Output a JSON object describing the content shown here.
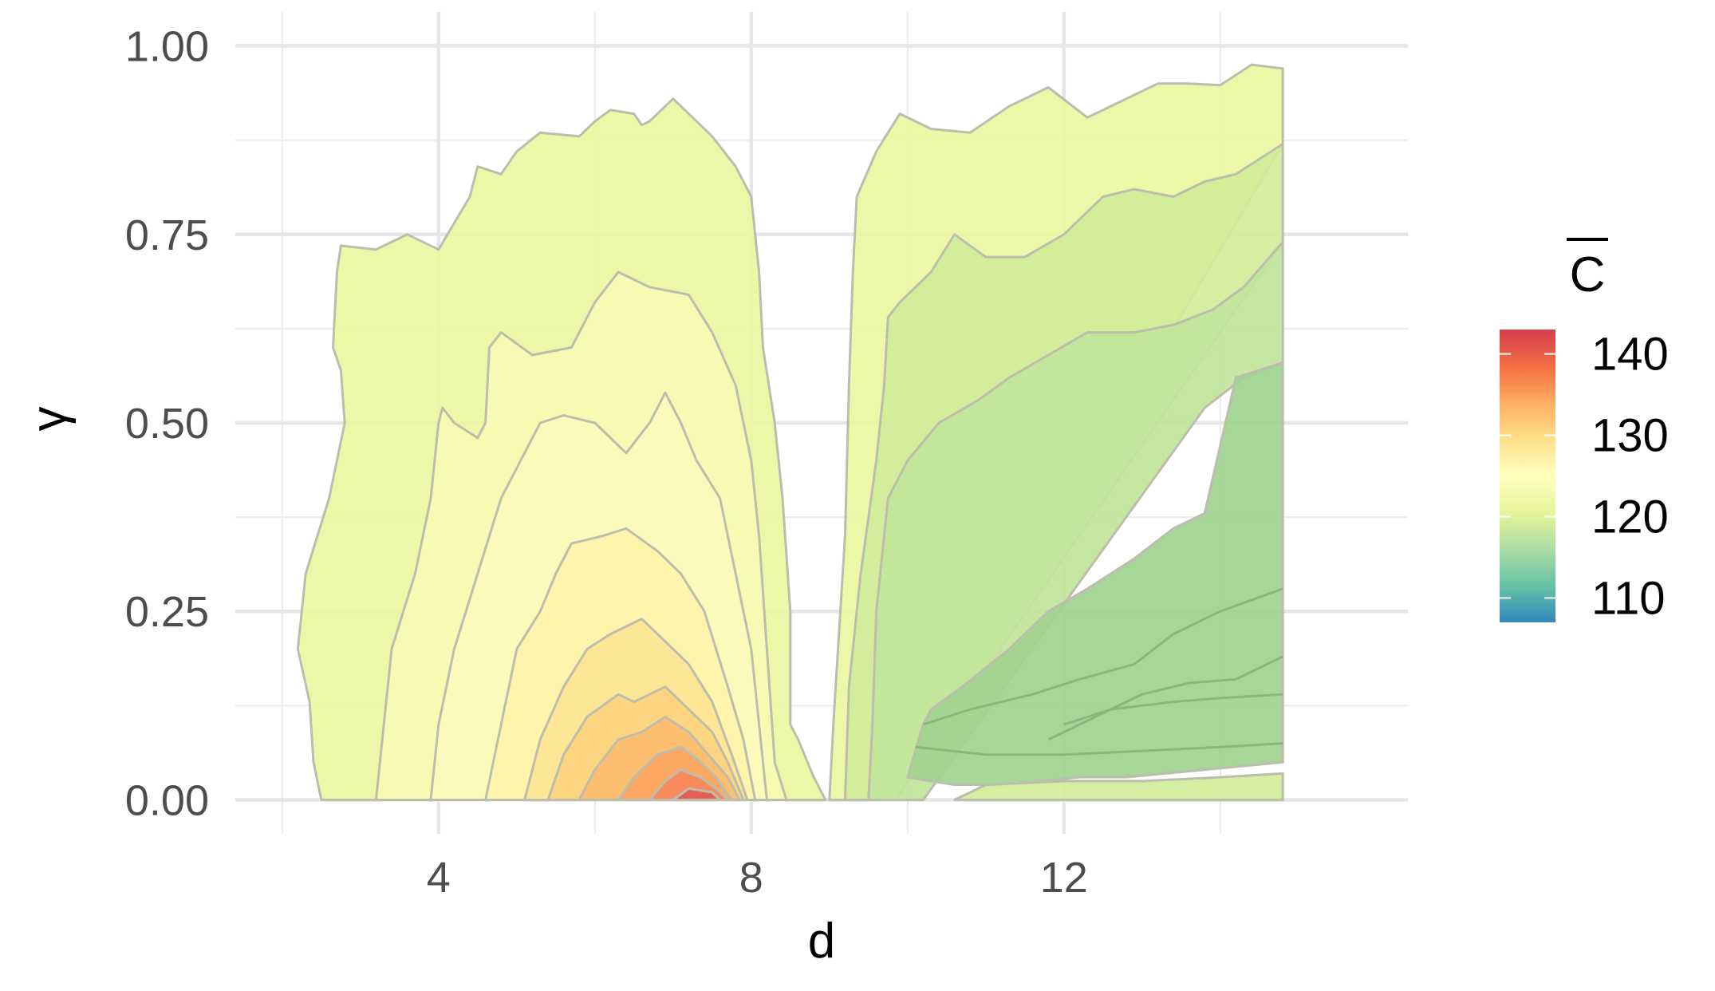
{
  "chart_data": {
    "type": "contour",
    "xlabel": "d",
    "ylabel": "γ",
    "xlim": [
      1.4,
      16.4
    ],
    "ylim": [
      -0.045,
      1.045
    ],
    "x_ticks": [
      4,
      8,
      12
    ],
    "x_tick_labels": [
      "4",
      "8",
      "12"
    ],
    "y_ticks": [
      0,
      0.25,
      0.5,
      0.75,
      1.0
    ],
    "y_tick_labels": [
      "0.00",
      "0.25",
      "0.50",
      "0.75",
      "1.00"
    ],
    "grid": true,
    "legend": {
      "title": "C",
      "title_has_overline": true,
      "placement": "right",
      "min": 107,
      "max": 143,
      "ticks": [
        110,
        120,
        130,
        140
      ],
      "tick_labels": [
        "110",
        "120",
        "130",
        "140"
      ],
      "palette": [
        "#3288bd",
        "#66c2a5",
        "#abdda4",
        "#e6f598",
        "#ffffbf",
        "#fee08b",
        "#fdae61",
        "#f46d43",
        "#d53e4f"
      ]
    },
    "regions": [
      {
        "level": 120,
        "color": "#eaf7a1",
        "points": [
          [
            2.5,
            0
          ],
          [
            2.4,
            0.05
          ],
          [
            2.35,
            0.13
          ],
          [
            2.2,
            0.2
          ],
          [
            2.3,
            0.3
          ],
          [
            2.6,
            0.4
          ],
          [
            2.8,
            0.5
          ],
          [
            2.75,
            0.57
          ],
          [
            2.65,
            0.6
          ],
          [
            2.7,
            0.7
          ],
          [
            2.75,
            0.735
          ],
          [
            3.2,
            0.73
          ],
          [
            3.6,
            0.75
          ],
          [
            4.0,
            0.73
          ],
          [
            4.4,
            0.8
          ],
          [
            4.5,
            0.84
          ],
          [
            4.8,
            0.83
          ],
          [
            5.0,
            0.86
          ],
          [
            5.3,
            0.885
          ],
          [
            5.8,
            0.88
          ],
          [
            6.0,
            0.9
          ],
          [
            6.2,
            0.915
          ],
          [
            6.5,
            0.91
          ],
          [
            6.6,
            0.895
          ],
          [
            6.7,
            0.9
          ],
          [
            7.0,
            0.93
          ],
          [
            7.3,
            0.9
          ],
          [
            7.5,
            0.88
          ],
          [
            7.8,
            0.84
          ],
          [
            8.0,
            0.8
          ],
          [
            8.05,
            0.75
          ],
          [
            8.1,
            0.7
          ],
          [
            8.15,
            0.6
          ],
          [
            8.3,
            0.5
          ],
          [
            8.4,
            0.4
          ],
          [
            8.5,
            0.25
          ],
          [
            8.5,
            0.1
          ],
          [
            8.6,
            0.08
          ],
          [
            8.8,
            0.03
          ],
          [
            8.95,
            0
          ]
        ]
      },
      {
        "level": 120,
        "color": "#eaf7a1",
        "points": [
          [
            9.0,
            0
          ],
          [
            9.05,
            0.1
          ],
          [
            9.2,
            0.35
          ],
          [
            9.25,
            0.55
          ],
          [
            9.3,
            0.7
          ],
          [
            9.35,
            0.8
          ],
          [
            9.6,
            0.86
          ],
          [
            9.9,
            0.91
          ],
          [
            10.3,
            0.89
          ],
          [
            10.8,
            0.885
          ],
          [
            11.3,
            0.92
          ],
          [
            11.8,
            0.945
          ],
          [
            12.3,
            0.905
          ],
          [
            12.8,
            0.93
          ],
          [
            13.2,
            0.95
          ],
          [
            13.6,
            0.95
          ],
          [
            14.0,
            0.948
          ],
          [
            14.4,
            0.975
          ],
          [
            14.8,
            0.97
          ],
          [
            14.8,
            0.87
          ],
          [
            10.0,
            0.03
          ],
          [
            9.6,
            0
          ]
        ]
      },
      {
        "level": 122,
        "color": "#f6fab4",
        "points": [
          [
            3.2,
            0
          ],
          [
            3.3,
            0.1
          ],
          [
            3.4,
            0.2
          ],
          [
            3.7,
            0.3
          ],
          [
            3.9,
            0.4
          ],
          [
            4.0,
            0.5
          ],
          [
            4.05,
            0.52
          ],
          [
            4.2,
            0.5
          ],
          [
            4.5,
            0.48
          ],
          [
            4.6,
            0.5
          ],
          [
            4.65,
            0.6
          ],
          [
            4.8,
            0.62
          ],
          [
            5.2,
            0.59
          ],
          [
            5.7,
            0.6
          ],
          [
            6.0,
            0.66
          ],
          [
            6.3,
            0.7
          ],
          [
            6.7,
            0.68
          ],
          [
            7.2,
            0.67
          ],
          [
            7.5,
            0.62
          ],
          [
            7.8,
            0.55
          ],
          [
            8.0,
            0.45
          ],
          [
            8.1,
            0.35
          ],
          [
            8.2,
            0.2
          ],
          [
            8.3,
            0.05
          ],
          [
            8.45,
            0
          ]
        ]
      },
      {
        "level": 124,
        "color": "#fbfabc",
        "points": [
          [
            3.9,
            0
          ],
          [
            4.0,
            0.1
          ],
          [
            4.2,
            0.2
          ],
          [
            4.5,
            0.3
          ],
          [
            4.8,
            0.4
          ],
          [
            5.0,
            0.44
          ],
          [
            5.3,
            0.5
          ],
          [
            5.6,
            0.51
          ],
          [
            6.0,
            0.5
          ],
          [
            6.4,
            0.46
          ],
          [
            6.7,
            0.5
          ],
          [
            6.9,
            0.54
          ],
          [
            7.1,
            0.5
          ],
          [
            7.3,
            0.45
          ],
          [
            7.6,
            0.4
          ],
          [
            7.8,
            0.3
          ],
          [
            8.0,
            0.2
          ],
          [
            8.1,
            0.1
          ],
          [
            8.2,
            0
          ]
        ]
      },
      {
        "level": 126,
        "color": "#fef3a9",
        "points": [
          [
            4.6,
            0
          ],
          [
            4.8,
            0.1
          ],
          [
            5.0,
            0.2
          ],
          [
            5.3,
            0.25
          ],
          [
            5.5,
            0.3
          ],
          [
            5.7,
            0.34
          ],
          [
            6.1,
            0.35
          ],
          [
            6.4,
            0.36
          ],
          [
            6.8,
            0.33
          ],
          [
            7.1,
            0.3
          ],
          [
            7.4,
            0.25
          ],
          [
            7.7,
            0.15
          ],
          [
            7.9,
            0.08
          ],
          [
            8.05,
            0
          ]
        ]
      },
      {
        "level": 128,
        "color": "#fde594",
        "points": [
          [
            5.1,
            0
          ],
          [
            5.3,
            0.08
          ],
          [
            5.6,
            0.15
          ],
          [
            5.9,
            0.2
          ],
          [
            6.2,
            0.22
          ],
          [
            6.6,
            0.24
          ],
          [
            6.9,
            0.21
          ],
          [
            7.2,
            0.18
          ],
          [
            7.5,
            0.13
          ],
          [
            7.75,
            0.06
          ],
          [
            7.95,
            0
          ]
        ]
      },
      {
        "level": 130,
        "color": "#fdd27e",
        "points": [
          [
            5.4,
            0
          ],
          [
            5.6,
            0.06
          ],
          [
            5.9,
            0.11
          ],
          [
            6.3,
            0.14
          ],
          [
            6.5,
            0.13
          ],
          [
            6.9,
            0.15
          ],
          [
            7.2,
            0.12
          ],
          [
            7.5,
            0.09
          ],
          [
            7.7,
            0.05
          ],
          [
            7.9,
            0
          ]
        ]
      },
      {
        "level": 132,
        "color": "#fdbd6e",
        "points": [
          [
            5.8,
            0
          ],
          [
            6.0,
            0.04
          ],
          [
            6.3,
            0.08
          ],
          [
            6.6,
            0.09
          ],
          [
            6.9,
            0.11
          ],
          [
            7.2,
            0.09
          ],
          [
            7.45,
            0.06
          ],
          [
            7.7,
            0.03
          ],
          [
            7.85,
            0
          ]
        ]
      },
      {
        "level": 134,
        "color": "#fca561",
        "points": [
          [
            6.3,
            0
          ],
          [
            6.5,
            0.03
          ],
          [
            6.8,
            0.06
          ],
          [
            7.1,
            0.07
          ],
          [
            7.3,
            0.055
          ],
          [
            7.55,
            0.03
          ],
          [
            7.75,
            0
          ]
        ]
      },
      {
        "level": 136,
        "color": "#f9885a",
        "points": [
          [
            6.7,
            0
          ],
          [
            6.9,
            0.025
          ],
          [
            7.1,
            0.04
          ],
          [
            7.35,
            0.03
          ],
          [
            7.55,
            0.015
          ],
          [
            7.7,
            0
          ]
        ]
      },
      {
        "level": 140,
        "color": "#e15b54",
        "points": [
          [
            7.0,
            0
          ],
          [
            7.2,
            0.015
          ],
          [
            7.5,
            0.01
          ],
          [
            7.6,
            0
          ]
        ]
      },
      {
        "level": 118,
        "color": "#d0ed9a",
        "points": [
          [
            9.2,
            0
          ],
          [
            9.25,
            0.15
          ],
          [
            9.4,
            0.3
          ],
          [
            9.6,
            0.45
          ],
          [
            9.7,
            0.55
          ],
          [
            9.75,
            0.64
          ],
          [
            9.9,
            0.66
          ],
          [
            10.3,
            0.7
          ],
          [
            10.6,
            0.75
          ],
          [
            11.0,
            0.72
          ],
          [
            11.5,
            0.72
          ],
          [
            12.0,
            0.75
          ],
          [
            12.5,
            0.8
          ],
          [
            12.9,
            0.81
          ],
          [
            13.4,
            0.8
          ],
          [
            13.8,
            0.82
          ],
          [
            14.2,
            0.83
          ],
          [
            14.8,
            0.87
          ],
          [
            14.8,
            0.74
          ],
          [
            9.85,
            0
          ]
        ]
      },
      {
        "level": 116,
        "color": "#c0e59a",
        "points": [
          [
            9.5,
            0
          ],
          [
            9.55,
            0.1
          ],
          [
            9.6,
            0.25
          ],
          [
            9.75,
            0.4
          ],
          [
            10.0,
            0.45
          ],
          [
            10.4,
            0.5
          ],
          [
            10.9,
            0.53
          ],
          [
            11.3,
            0.56
          ],
          [
            11.8,
            0.59
          ],
          [
            12.3,
            0.62
          ],
          [
            12.9,
            0.62
          ],
          [
            13.4,
            0.63
          ],
          [
            13.9,
            0.65
          ],
          [
            14.3,
            0.68
          ],
          [
            14.8,
            0.74
          ],
          [
            14.8,
            0.58
          ],
          [
            14.3,
            0.56
          ],
          [
            13.8,
            0.52
          ],
          [
            10.2,
            0
          ],
          [
            9.5,
            0
          ]
        ]
      },
      {
        "level": 114,
        "color": "#9fd48f",
        "points": [
          [
            10.2,
            0.1
          ],
          [
            10.3,
            0.12
          ],
          [
            10.7,
            0.15
          ],
          [
            11.3,
            0.2
          ],
          [
            11.8,
            0.25
          ],
          [
            12.3,
            0.28
          ],
          [
            12.9,
            0.32
          ],
          [
            13.4,
            0.36
          ],
          [
            13.8,
            0.38
          ],
          [
            14.2,
            0.56
          ],
          [
            14.8,
            0.58
          ],
          [
            14.8,
            0.05
          ],
          [
            14.3,
            0.045
          ],
          [
            13.8,
            0.04
          ],
          [
            13.3,
            0.035
          ],
          [
            12.8,
            0.03
          ],
          [
            12.2,
            0.03
          ],
          [
            11.7,
            0.025
          ],
          [
            11.2,
            0.02
          ],
          [
            10.6,
            0.02
          ],
          [
            10.0,
            0.03
          ]
        ]
      },
      {
        "level": 118,
        "color": "#d0ed9a",
        "points": [
          [
            10.6,
            0
          ],
          [
            11.0,
            0.02
          ],
          [
            12.0,
            0.025
          ],
          [
            13.0,
            0.025
          ],
          [
            14.0,
            0.03
          ],
          [
            14.8,
            0.035
          ],
          [
            14.8,
            0.0
          ],
          [
            10.6,
            0
          ]
        ]
      }
    ],
    "contour_lines": [
      [
        [
          10.2,
          0.1
        ],
        [
          10.8,
          0.12
        ],
        [
          11.6,
          0.14
        ],
        [
          12.2,
          0.16
        ],
        [
          12.9,
          0.18
        ],
        [
          13.4,
          0.22
        ],
        [
          14.0,
          0.25
        ],
        [
          14.8,
          0.28
        ]
      ],
      [
        [
          10.1,
          0.07
        ],
        [
          11.0,
          0.06
        ],
        [
          12.0,
          0.06
        ],
        [
          13.0,
          0.065
        ],
        [
          14.0,
          0.07
        ],
        [
          14.8,
          0.075
        ]
      ],
      [
        [
          11.8,
          0.08
        ],
        [
          12.4,
          0.11
        ],
        [
          13.0,
          0.14
        ],
        [
          13.6,
          0.155
        ],
        [
          14.2,
          0.16
        ],
        [
          14.8,
          0.19
        ]
      ],
      [
        [
          12.0,
          0.1
        ],
        [
          12.6,
          0.12
        ],
        [
          13.4,
          0.13
        ],
        [
          14.0,
          0.135
        ],
        [
          14.8,
          0.14
        ]
      ]
    ]
  }
}
